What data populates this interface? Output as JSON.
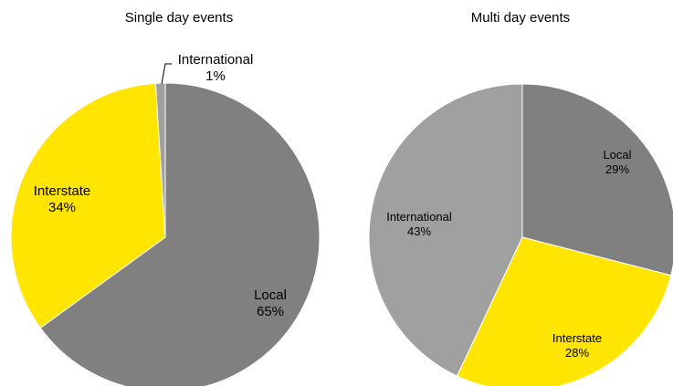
{
  "chart_data": [
    {
      "type": "pie",
      "title": "Single day events",
      "slices": [
        {
          "label": "Local",
          "value": 65,
          "value_text": "65%",
          "color": "#808080"
        },
        {
          "label": "Interstate",
          "value": 34,
          "value_text": "34%",
          "color": "#FFE500"
        },
        {
          "label": "International",
          "value": 1,
          "value_text": "1%",
          "color": "#A0A0A0"
        }
      ]
    },
    {
      "type": "pie",
      "title": "Multi day events",
      "slices": [
        {
          "label": "Local",
          "value": 29,
          "value_text": "29%",
          "color": "#808080"
        },
        {
          "label": "Interstate",
          "value": 28,
          "value_text": "28%",
          "color": "#FFE500"
        },
        {
          "label": "International",
          "value": 43,
          "value_text": "43%",
          "color": "#A0A0A0"
        }
      ]
    }
  ]
}
